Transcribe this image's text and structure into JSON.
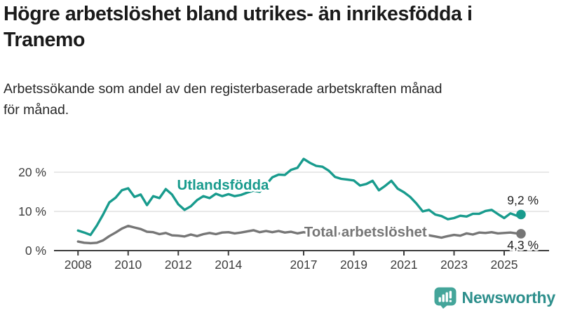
{
  "header": {
    "title_lines": [
      "Högre arbetslöshet bland utrikes- än inrikesfödda i",
      "Tranemo"
    ],
    "subtitle_lines": [
      "Arbetssökande som andel av den registerbaserade arbetskraften månad",
      "för månad."
    ]
  },
  "chart_data": {
    "type": "line",
    "title": "Högre arbetslöshet bland utrikes- än inrikesfödda i Tranemo",
    "subtitle": "Arbetssökande som andel av den registerbaserade arbetskraften månad för månad.",
    "grid": "horizontal",
    "legend_position": "inline-labels",
    "xlabel": "",
    "ylabel": "",
    "xlim": [
      2007.9,
      2026.8
    ],
    "ylim": [
      0,
      27.3
    ],
    "x_ticks": [
      2008,
      2010,
      2012,
      2014,
      2017,
      2019,
      2021,
      2023,
      2025
    ],
    "y_ticks": [
      {
        "value": 0,
        "label": "0 %"
      },
      {
        "value": 10,
        "label": "10 %"
      },
      {
        "value": 20,
        "label": "20 %"
      }
    ],
    "x": [
      2008.0,
      2008.25,
      2008.5,
      2008.75,
      2009.0,
      2009.25,
      2009.5,
      2009.75,
      2010.0,
      2010.25,
      2010.5,
      2010.75,
      2011.0,
      2011.25,
      2011.5,
      2011.75,
      2012.0,
      2012.25,
      2012.5,
      2012.75,
      2013.0,
      2013.25,
      2013.5,
      2013.75,
      2014.0,
      2014.25,
      2014.5,
      2014.75,
      2015.0,
      2015.25,
      2015.5,
      2015.75,
      2016.0,
      2016.25,
      2016.5,
      2016.75,
      2017.0,
      2017.25,
      2017.5,
      2017.75,
      2018.0,
      2018.25,
      2018.5,
      2018.75,
      2019.0,
      2019.25,
      2019.5,
      2019.75,
      2020.0,
      2020.25,
      2020.5,
      2020.75,
      2021.0,
      2021.25,
      2021.5,
      2021.75,
      2022.0,
      2022.25,
      2022.5,
      2022.75,
      2023.0,
      2023.25,
      2023.5,
      2023.75,
      2024.0,
      2024.25,
      2024.5,
      2024.75,
      2025.0,
      2025.25,
      2025.5,
      2025.67
    ],
    "series": [
      {
        "name": "Utlandsfödda",
        "color": "#189b8d",
        "end_label": "9,2 %",
        "end_value": 9.2,
        "label_pos": {
          "year": 2011.95,
          "value": 15.5
        },
        "end_label_dy": -14.5,
        "values": [
          5.1,
          4.6,
          4.0,
          6.4,
          9.2,
          12.3,
          13.5,
          15.4,
          15.9,
          13.7,
          14.3,
          11.6,
          13.9,
          13.4,
          15.7,
          14.3,
          11.8,
          10.4,
          11.3,
          12.9,
          13.9,
          13.4,
          14.5,
          13.9,
          14.4,
          13.9,
          14.2,
          14.8,
          15.3,
          15.0,
          16.8,
          18.7,
          19.4,
          19.3,
          20.6,
          21.1,
          23.4,
          22.4,
          21.6,
          21.4,
          20.4,
          18.8,
          18.3,
          18.1,
          17.9,
          16.6,
          17.0,
          17.8,
          15.4,
          16.5,
          17.8,
          15.8,
          14.9,
          13.7,
          12.0,
          10.0,
          10.4,
          9.2,
          8.8,
          8.0,
          8.3,
          8.9,
          8.7,
          9.4,
          9.4,
          10.1,
          10.4,
          9.3,
          8.3,
          9.5,
          8.9,
          9.2
        ]
      },
      {
        "name": "Total arbetslöshet",
        "color": "#767676",
        "end_label": "4,3 %",
        "end_value": 4.3,
        "label_pos": {
          "year": 2017.02,
          "value": 3.6
        },
        "end_label_dy": 22,
        "values": [
          2.3,
          2.0,
          1.9,
          2.0,
          2.6,
          3.7,
          4.6,
          5.6,
          6.3,
          5.9,
          5.5,
          4.8,
          4.7,
          4.2,
          4.5,
          3.9,
          3.8,
          3.6,
          4.1,
          3.7,
          4.2,
          4.5,
          4.2,
          4.6,
          4.7,
          4.4,
          4.6,
          4.9,
          5.2,
          4.7,
          5.0,
          4.7,
          5.0,
          4.6,
          4.8,
          4.4,
          4.7,
          4.4,
          4.6,
          4.3,
          4.5,
          4.2,
          4.4,
          4.2,
          4.4,
          4.2,
          4.5,
          4.4,
          4.3,
          5.0,
          5.4,
          5.1,
          4.9,
          4.6,
          4.2,
          3.8,
          3.9,
          3.6,
          3.3,
          3.7,
          4.0,
          3.8,
          4.4,
          4.1,
          4.6,
          4.5,
          4.7,
          4.4,
          4.5,
          4.6,
          4.4,
          4.3
        ]
      }
    ],
    "colors": {
      "grid": "#dadada",
      "axis": "#3c3c3c",
      "tick_text": "#3d3d3d",
      "value_label_text": "#222222"
    }
  },
  "footer": {
    "brand": "Newsworthy"
  }
}
